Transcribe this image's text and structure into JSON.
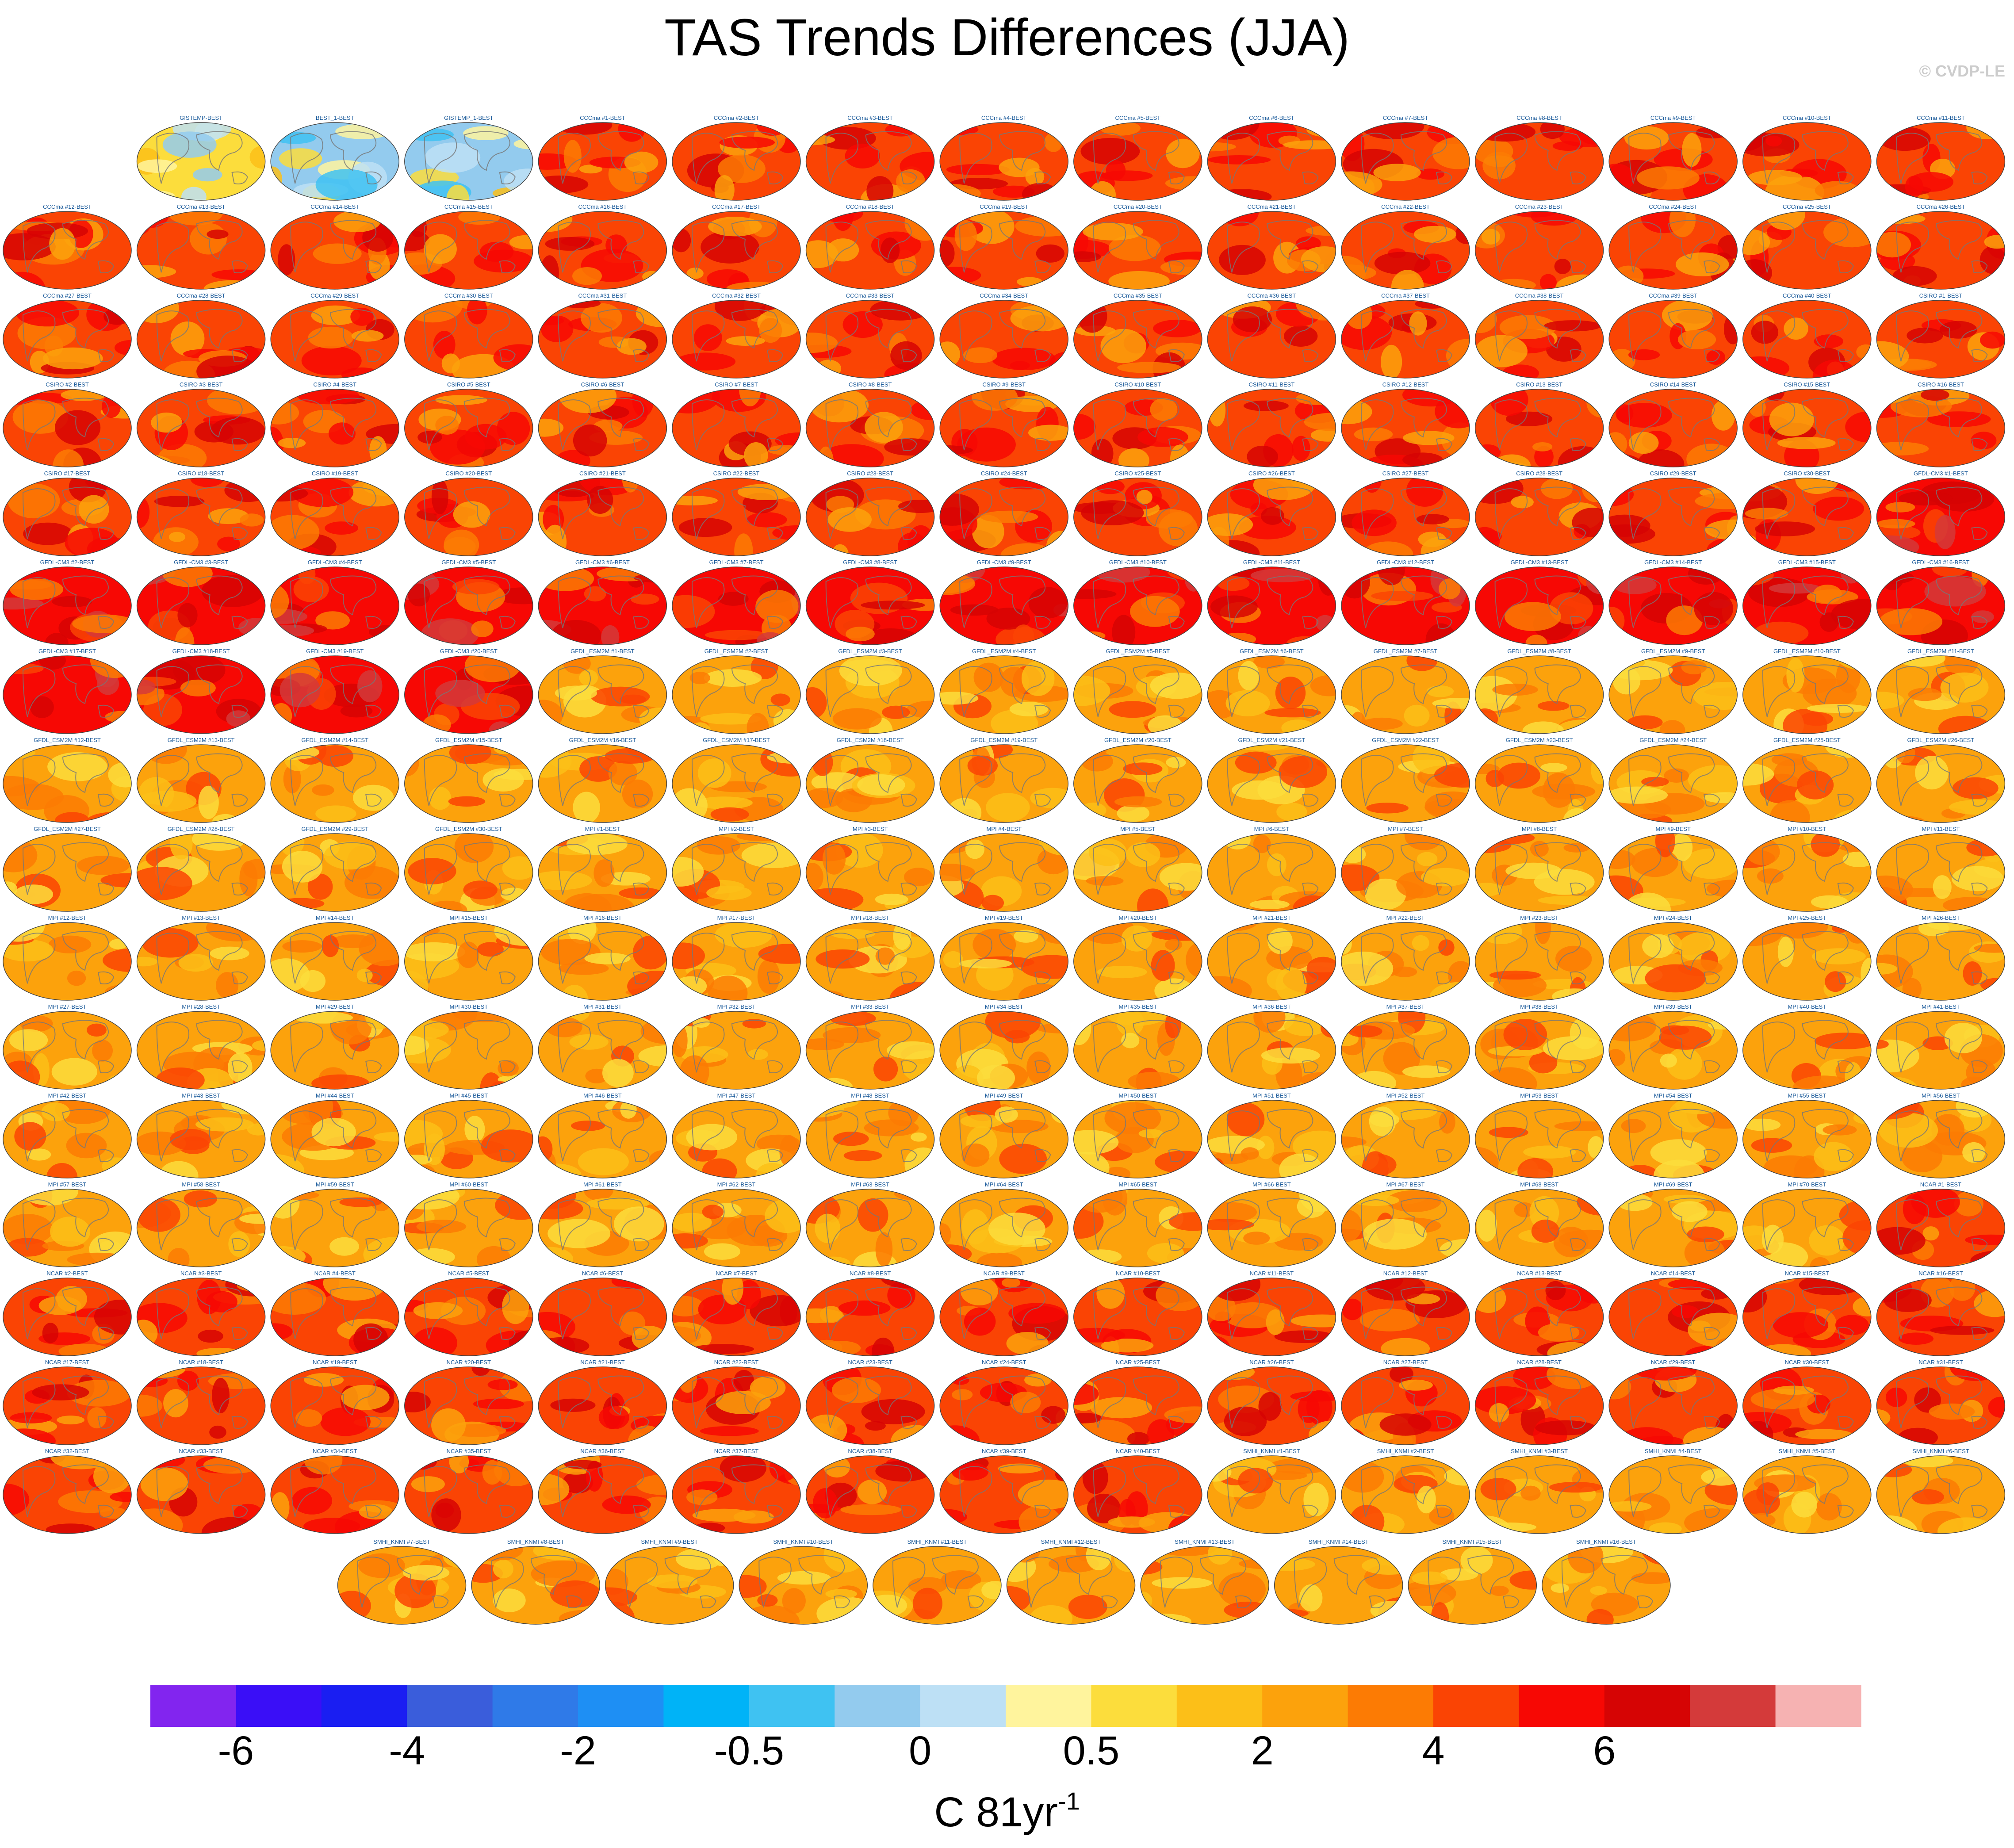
{
  "title": "TAS Trends Differences (JJA)",
  "credit": "© CVDP-LE",
  "panels": [
    {
      "label": "GISTEMP-BEST",
      "scheme": "neutral"
    },
    {
      "label": "BEST_1-BEST",
      "scheme": "neutral-cool"
    },
    {
      "label": "GISTEMP_1-BEST",
      "scheme": "neutral-cool"
    },
    {
      "label": "CCCma #1-BEST",
      "scheme": "warm"
    },
    {
      "label": "CCCma #2-BEST",
      "scheme": "warm"
    },
    {
      "label": "CCCma #3-BEST",
      "scheme": "warm"
    },
    {
      "label": "CCCma #4-BEST",
      "scheme": "warm"
    },
    {
      "label": "CCCma #5-BEST",
      "scheme": "warm"
    },
    {
      "label": "CCCma #6-BEST",
      "scheme": "warm"
    },
    {
      "label": "CCCma #7-BEST",
      "scheme": "warm"
    },
    {
      "label": "CCCma #8-BEST",
      "scheme": "warm"
    },
    {
      "label": "CCCma #9-BEST",
      "scheme": "warm"
    },
    {
      "label": "CCCma #10-BEST",
      "scheme": "warm"
    },
    {
      "label": "CCCma #11-BEST",
      "scheme": "warm"
    },
    {
      "label": "CCCma #12-BEST",
      "scheme": "warm"
    },
    {
      "label": "CCCma #13-BEST",
      "scheme": "warm"
    },
    {
      "label": "CCCma #14-BEST",
      "scheme": "warm"
    },
    {
      "label": "CCCma #15-BEST",
      "scheme": "warm"
    },
    {
      "label": "CCCma #16-BEST",
      "scheme": "warm"
    },
    {
      "label": "CCCma #17-BEST",
      "scheme": "warm"
    },
    {
      "label": "CCCma #18-BEST",
      "scheme": "warm"
    },
    {
      "label": "CCCma #19-BEST",
      "scheme": "warm"
    },
    {
      "label": "CCCma #20-BEST",
      "scheme": "warm"
    },
    {
      "label": "CCCma #21-BEST",
      "scheme": "warm"
    },
    {
      "label": "CCCma #22-BEST",
      "scheme": "warm"
    },
    {
      "label": "CCCma #23-BEST",
      "scheme": "warm"
    },
    {
      "label": "CCCma #24-BEST",
      "scheme": "warm"
    },
    {
      "label": "CCCma #25-BEST",
      "scheme": "warm"
    },
    {
      "label": "CCCma #26-BEST",
      "scheme": "warm"
    },
    {
      "label": "CCCma #27-BEST",
      "scheme": "warm"
    },
    {
      "label": "CCCma #28-BEST",
      "scheme": "warm"
    },
    {
      "label": "CCCma #29-BEST",
      "scheme": "warm"
    },
    {
      "label": "CCCma #30-BEST",
      "scheme": "warm"
    },
    {
      "label": "CCCma #31-BEST",
      "scheme": "warm"
    },
    {
      "label": "CCCma #32-BEST",
      "scheme": "warm"
    },
    {
      "label": "CCCma #33-BEST",
      "scheme": "warm"
    },
    {
      "label": "CCCma #34-BEST",
      "scheme": "warm"
    },
    {
      "label": "CCCma #35-BEST",
      "scheme": "warm"
    },
    {
      "label": "CCCma #36-BEST",
      "scheme": "warm"
    },
    {
      "label": "CCCma #37-BEST",
      "scheme": "warm"
    },
    {
      "label": "CCCma #38-BEST",
      "scheme": "warm"
    },
    {
      "label": "CCCma #39-BEST",
      "scheme": "warm"
    },
    {
      "label": "CCCma #40-BEST",
      "scheme": "warm"
    },
    {
      "label": "CSIRO #1-BEST",
      "scheme": "warm"
    },
    {
      "label": "CSIRO #2-BEST",
      "scheme": "warm"
    },
    {
      "label": "CSIRO #3-BEST",
      "scheme": "warm"
    },
    {
      "label": "CSIRO #4-BEST",
      "scheme": "warm"
    },
    {
      "label": "CSIRO #5-BEST",
      "scheme": "warm"
    },
    {
      "label": "CSIRO #6-BEST",
      "scheme": "warm"
    },
    {
      "label": "CSIRO #7-BEST",
      "scheme": "warm"
    },
    {
      "label": "CSIRO #8-BEST",
      "scheme": "warm"
    },
    {
      "label": "CSIRO #9-BEST",
      "scheme": "warm"
    },
    {
      "label": "CSIRO #10-BEST",
      "scheme": "warm"
    },
    {
      "label": "CSIRO #11-BEST",
      "scheme": "warm"
    },
    {
      "label": "CSIRO #12-BEST",
      "scheme": "warm"
    },
    {
      "label": "CSIRO #13-BEST",
      "scheme": "warm"
    },
    {
      "label": "CSIRO #14-BEST",
      "scheme": "warm"
    },
    {
      "label": "CSIRO #15-BEST",
      "scheme": "warm"
    },
    {
      "label": "CSIRO #16-BEST",
      "scheme": "warm"
    },
    {
      "label": "CSIRO #17-BEST",
      "scheme": "warm"
    },
    {
      "label": "CSIRO #18-BEST",
      "scheme": "warm"
    },
    {
      "label": "CSIRO #19-BEST",
      "scheme": "warm"
    },
    {
      "label": "CSIRO #20-BEST",
      "scheme": "warm"
    },
    {
      "label": "CSIRO #21-BEST",
      "scheme": "warm"
    },
    {
      "label": "CSIRO #22-BEST",
      "scheme": "warm"
    },
    {
      "label": "CSIRO #23-BEST",
      "scheme": "warm"
    },
    {
      "label": "CSIRO #24-BEST",
      "scheme": "warm"
    },
    {
      "label": "CSIRO #25-BEST",
      "scheme": "warm"
    },
    {
      "label": "CSIRO #26-BEST",
      "scheme": "warm"
    },
    {
      "label": "CSIRO #27-BEST",
      "scheme": "warm"
    },
    {
      "label": "CSIRO #28-BEST",
      "scheme": "warm"
    },
    {
      "label": "CSIRO #29-BEST",
      "scheme": "warm"
    },
    {
      "label": "CSIRO #30-BEST",
      "scheme": "warm"
    },
    {
      "label": "GFDL-CM3 #1-BEST",
      "scheme": "hot"
    },
    {
      "label": "GFDL-CM3 #2-BEST",
      "scheme": "hot"
    },
    {
      "label": "GFDL-CM3 #3-BEST",
      "scheme": "hot"
    },
    {
      "label": "GFDL-CM3 #4-BEST",
      "scheme": "hot"
    },
    {
      "label": "GFDL-CM3 #5-BEST",
      "scheme": "hot"
    },
    {
      "label": "GFDL-CM3 #6-BEST",
      "scheme": "hot"
    },
    {
      "label": "GFDL-CM3 #7-BEST",
      "scheme": "hot"
    },
    {
      "label": "GFDL-CM3 #8-BEST",
      "scheme": "hot"
    },
    {
      "label": "GFDL-CM3 #9-BEST",
      "scheme": "hot"
    },
    {
      "label": "GFDL-CM3 #10-BEST",
      "scheme": "hot"
    },
    {
      "label": "GFDL-CM3 #11-BEST",
      "scheme": "hot"
    },
    {
      "label": "GFDL-CM3 #12-BEST",
      "scheme": "hot"
    },
    {
      "label": "GFDL-CM3 #13-BEST",
      "scheme": "hot"
    },
    {
      "label": "GFDL-CM3 #14-BEST",
      "scheme": "hot"
    },
    {
      "label": "GFDL-CM3 #15-BEST",
      "scheme": "hot"
    },
    {
      "label": "GFDL-CM3 #16-BEST",
      "scheme": "hot"
    },
    {
      "label": "GFDL-CM3 #17-BEST",
      "scheme": "hot"
    },
    {
      "label": "GFDL-CM3 #18-BEST",
      "scheme": "hot"
    },
    {
      "label": "GFDL-CM3 #19-BEST",
      "scheme": "hot"
    },
    {
      "label": "GFDL-CM3 #20-BEST",
      "scheme": "hot"
    },
    {
      "label": "GFDL_ESM2M #1-BEST",
      "scheme": "mild"
    },
    {
      "label": "GFDL_ESM2M #2-BEST",
      "scheme": "mild"
    },
    {
      "label": "GFDL_ESM2M #3-BEST",
      "scheme": "mild"
    },
    {
      "label": "GFDL_ESM2M #4-BEST",
      "scheme": "mild"
    },
    {
      "label": "GFDL_ESM2M #5-BEST",
      "scheme": "mild"
    },
    {
      "label": "GFDL_ESM2M #6-BEST",
      "scheme": "mild"
    },
    {
      "label": "GFDL_ESM2M #7-BEST",
      "scheme": "mild"
    },
    {
      "label": "GFDL_ESM2M #8-BEST",
      "scheme": "mild"
    },
    {
      "label": "GFDL_ESM2M #9-BEST",
      "scheme": "mild"
    },
    {
      "label": "GFDL_ESM2M #10-BEST",
      "scheme": "mild"
    },
    {
      "label": "GFDL_ESM2M #11-BEST",
      "scheme": "mild"
    },
    {
      "label": "GFDL_ESM2M #12-BEST",
      "scheme": "mild"
    },
    {
      "label": "GFDL_ESM2M #13-BEST",
      "scheme": "mild"
    },
    {
      "label": "GFDL_ESM2M #14-BEST",
      "scheme": "mild"
    },
    {
      "label": "GFDL_ESM2M #15-BEST",
      "scheme": "mild"
    },
    {
      "label": "GFDL_ESM2M #16-BEST",
      "scheme": "mild"
    },
    {
      "label": "GFDL_ESM2M #17-BEST",
      "scheme": "mild"
    },
    {
      "label": "GFDL_ESM2M #18-BEST",
      "scheme": "mild"
    },
    {
      "label": "GFDL_ESM2M #19-BEST",
      "scheme": "mild"
    },
    {
      "label": "GFDL_ESM2M #20-BEST",
      "scheme": "mild"
    },
    {
      "label": "GFDL_ESM2M #21-BEST",
      "scheme": "mild"
    },
    {
      "label": "GFDL_ESM2M #22-BEST",
      "scheme": "mild"
    },
    {
      "label": "GFDL_ESM2M #23-BEST",
      "scheme": "mild"
    },
    {
      "label": "GFDL_ESM2M #24-BEST",
      "scheme": "mild"
    },
    {
      "label": "GFDL_ESM2M #25-BEST",
      "scheme": "mild"
    },
    {
      "label": "GFDL_ESM2M #26-BEST",
      "scheme": "mild"
    },
    {
      "label": "GFDL_ESM2M #27-BEST",
      "scheme": "mild"
    },
    {
      "label": "GFDL_ESM2M #28-BEST",
      "scheme": "mild"
    },
    {
      "label": "GFDL_ESM2M #29-BEST",
      "scheme": "mild"
    },
    {
      "label": "GFDL_ESM2M #30-BEST",
      "scheme": "mild"
    },
    {
      "label": "MPI #1-BEST",
      "scheme": "mild"
    },
    {
      "label": "MPI #2-BEST",
      "scheme": "mild"
    },
    {
      "label": "MPI #3-BEST",
      "scheme": "mild"
    },
    {
      "label": "MPI #4-BEST",
      "scheme": "mild"
    },
    {
      "label": "MPI #5-BEST",
      "scheme": "mild"
    },
    {
      "label": "MPI #6-BEST",
      "scheme": "mild"
    },
    {
      "label": "MPI #7-BEST",
      "scheme": "mild"
    },
    {
      "label": "MPI #8-BEST",
      "scheme": "mild"
    },
    {
      "label": "MPI #9-BEST",
      "scheme": "mild"
    },
    {
      "label": "MPI #10-BEST",
      "scheme": "mild"
    },
    {
      "label": "MPI #11-BEST",
      "scheme": "mild"
    },
    {
      "label": "MPI #12-BEST",
      "scheme": "mild"
    },
    {
      "label": "MPI #13-BEST",
      "scheme": "mild"
    },
    {
      "label": "MPI #14-BEST",
      "scheme": "mild"
    },
    {
      "label": "MPI #15-BEST",
      "scheme": "mild"
    },
    {
      "label": "MPI #16-BEST",
      "scheme": "mild"
    },
    {
      "label": "MPI #17-BEST",
      "scheme": "mild"
    },
    {
      "label": "MPI #18-BEST",
      "scheme": "mild"
    },
    {
      "label": "MPI #19-BEST",
      "scheme": "mild"
    },
    {
      "label": "MPI #20-BEST",
      "scheme": "mild"
    },
    {
      "label": "MPI #21-BEST",
      "scheme": "mild"
    },
    {
      "label": "MPI #22-BEST",
      "scheme": "mild"
    },
    {
      "label": "MPI #23-BEST",
      "scheme": "mild"
    },
    {
      "label": "MPI #24-BEST",
      "scheme": "mild"
    },
    {
      "label": "MPI #25-BEST",
      "scheme": "mild"
    },
    {
      "label": "MPI #26-BEST",
      "scheme": "mild"
    },
    {
      "label": "MPI #27-BEST",
      "scheme": "mild"
    },
    {
      "label": "MPI #28-BEST",
      "scheme": "mild"
    },
    {
      "label": "MPI #29-BEST",
      "scheme": "mild"
    },
    {
      "label": "MPI #30-BEST",
      "scheme": "mild"
    },
    {
      "label": "MPI #31-BEST",
      "scheme": "mild"
    },
    {
      "label": "MPI #32-BEST",
      "scheme": "mild"
    },
    {
      "label": "MPI #33-BEST",
      "scheme": "mild"
    },
    {
      "label": "MPI #34-BEST",
      "scheme": "mild"
    },
    {
      "label": "MPI #35-BEST",
      "scheme": "mild"
    },
    {
      "label": "MPI #36-BEST",
      "scheme": "mild"
    },
    {
      "label": "MPI #37-BEST",
      "scheme": "mild"
    },
    {
      "label": "MPI #38-BEST",
      "scheme": "mild"
    },
    {
      "label": "MPI #39-BEST",
      "scheme": "mild"
    },
    {
      "label": "MPI #40-BEST",
      "scheme": "mild"
    },
    {
      "label": "MPI #41-BEST",
      "scheme": "mild"
    },
    {
      "label": "MPI #42-BEST",
      "scheme": "mild"
    },
    {
      "label": "MPI #43-BEST",
      "scheme": "mild"
    },
    {
      "label": "MPI #44-BEST",
      "scheme": "mild"
    },
    {
      "label": "MPI #45-BEST",
      "scheme": "mild"
    },
    {
      "label": "MPI #46-BEST",
      "scheme": "mild"
    },
    {
      "label": "MPI #47-BEST",
      "scheme": "mild"
    },
    {
      "label": "MPI #48-BEST",
      "scheme": "mild"
    },
    {
      "label": "MPI #49-BEST",
      "scheme": "mild"
    },
    {
      "label": "MPI #50-BEST",
      "scheme": "mild"
    },
    {
      "label": "MPI #51-BEST",
      "scheme": "mild"
    },
    {
      "label": "MPI #52-BEST",
      "scheme": "mild"
    },
    {
      "label": "MPI #53-BEST",
      "scheme": "mild"
    },
    {
      "label": "MPI #54-BEST",
      "scheme": "mild"
    },
    {
      "label": "MPI #55-BEST",
      "scheme": "mild"
    },
    {
      "label": "MPI #56-BEST",
      "scheme": "mild"
    },
    {
      "label": "MPI #57-BEST",
      "scheme": "mild"
    },
    {
      "label": "MPI #58-BEST",
      "scheme": "mild"
    },
    {
      "label": "MPI #59-BEST",
      "scheme": "mild"
    },
    {
      "label": "MPI #60-BEST",
      "scheme": "mild"
    },
    {
      "label": "MPI #61-BEST",
      "scheme": "mild"
    },
    {
      "label": "MPI #62-BEST",
      "scheme": "mild"
    },
    {
      "label": "MPI #63-BEST",
      "scheme": "mild"
    },
    {
      "label": "MPI #64-BEST",
      "scheme": "mild"
    },
    {
      "label": "MPI #65-BEST",
      "scheme": "mild"
    },
    {
      "label": "MPI #66-BEST",
      "scheme": "mild"
    },
    {
      "label": "MPI #67-BEST",
      "scheme": "mild"
    },
    {
      "label": "MPI #68-BEST",
      "scheme": "mild"
    },
    {
      "label": "MPI #69-BEST",
      "scheme": "mild"
    },
    {
      "label": "MPI #70-BEST",
      "scheme": "mild"
    },
    {
      "label": "NCAR #1-BEST",
      "scheme": "warm"
    },
    {
      "label": "NCAR #2-BEST",
      "scheme": "warm"
    },
    {
      "label": "NCAR #3-BEST",
      "scheme": "warm"
    },
    {
      "label": "NCAR #4-BEST",
      "scheme": "warm"
    },
    {
      "label": "NCAR #5-BEST",
      "scheme": "warm"
    },
    {
      "label": "NCAR #6-BEST",
      "scheme": "warm"
    },
    {
      "label": "NCAR #7-BEST",
      "scheme": "warm"
    },
    {
      "label": "NCAR #8-BEST",
      "scheme": "warm"
    },
    {
      "label": "NCAR #9-BEST",
      "scheme": "warm"
    },
    {
      "label": "NCAR #10-BEST",
      "scheme": "warm"
    },
    {
      "label": "NCAR #11-BEST",
      "scheme": "warm"
    },
    {
      "label": "NCAR #12-BEST",
      "scheme": "warm"
    },
    {
      "label": "NCAR #13-BEST",
      "scheme": "warm"
    },
    {
      "label": "NCAR #14-BEST",
      "scheme": "warm"
    },
    {
      "label": "NCAR #15-BEST",
      "scheme": "warm"
    },
    {
      "label": "NCAR #16-BEST",
      "scheme": "warm"
    },
    {
      "label": "NCAR #17-BEST",
      "scheme": "warm"
    },
    {
      "label": "NCAR #18-BEST",
      "scheme": "warm"
    },
    {
      "label": "NCAR #19-BEST",
      "scheme": "warm"
    },
    {
      "label": "NCAR #20-BEST",
      "scheme": "warm"
    },
    {
      "label": "NCAR #21-BEST",
      "scheme": "warm"
    },
    {
      "label": "NCAR #22-BEST",
      "scheme": "warm"
    },
    {
      "label": "NCAR #23-BEST",
      "scheme": "warm"
    },
    {
      "label": "NCAR #24-BEST",
      "scheme": "warm"
    },
    {
      "label": "NCAR #25-BEST",
      "scheme": "warm"
    },
    {
      "label": "NCAR #26-BEST",
      "scheme": "warm"
    },
    {
      "label": "NCAR #27-BEST",
      "scheme": "warm"
    },
    {
      "label": "NCAR #28-BEST",
      "scheme": "warm"
    },
    {
      "label": "NCAR #29-BEST",
      "scheme": "warm"
    },
    {
      "label": "NCAR #30-BEST",
      "scheme": "warm"
    },
    {
      "label": "NCAR #31-BEST",
      "scheme": "warm"
    },
    {
      "label": "NCAR #32-BEST",
      "scheme": "warm"
    },
    {
      "label": "NCAR #33-BEST",
      "scheme": "warm"
    },
    {
      "label": "NCAR #34-BEST",
      "scheme": "warm"
    },
    {
      "label": "NCAR #35-BEST",
      "scheme": "warm"
    },
    {
      "label": "NCAR #36-BEST",
      "scheme": "warm"
    },
    {
      "label": "NCAR #37-BEST",
      "scheme": "warm"
    },
    {
      "label": "NCAR #38-BEST",
      "scheme": "warm"
    },
    {
      "label": "NCAR #39-BEST",
      "scheme": "warm"
    },
    {
      "label": "NCAR #40-BEST",
      "scheme": "warm"
    },
    {
      "label": "SMHI_KNMI #1-BEST",
      "scheme": "mild"
    },
    {
      "label": "SMHI_KNMI #2-BEST",
      "scheme": "mild"
    },
    {
      "label": "SMHI_KNMI #3-BEST",
      "scheme": "mild"
    },
    {
      "label": "SMHI_KNMI #4-BEST",
      "scheme": "mild"
    },
    {
      "label": "SMHI_KNMI #5-BEST",
      "scheme": "mild"
    },
    {
      "label": "SMHI_KNMI #6-BEST",
      "scheme": "mild"
    },
    {
      "label": "SMHI_KNMI #7-BEST",
      "scheme": "mild"
    },
    {
      "label": "SMHI_KNMI #8-BEST",
      "scheme": "mild"
    },
    {
      "label": "SMHI_KNMI #9-BEST",
      "scheme": "mild"
    },
    {
      "label": "SMHI_KNMI #10-BEST",
      "scheme": "mild"
    },
    {
      "label": "SMHI_KNMI #11-BEST",
      "scheme": "mild"
    },
    {
      "label": "SMHI_KNMI #12-BEST",
      "scheme": "mild"
    },
    {
      "label": "SMHI_KNMI #13-BEST",
      "scheme": "mild"
    },
    {
      "label": "SMHI_KNMI #14-BEST",
      "scheme": "mild"
    },
    {
      "label": "SMHI_KNMI #15-BEST",
      "scheme": "mild"
    },
    {
      "label": "SMHI_KNMI #16-BEST",
      "scheme": "mild"
    }
  ],
  "chart_data": {
    "type": "heatmap",
    "title": "TAS Trends Differences (JJA)",
    "colorbar": {
      "colors": [
        "#8225ef",
        "#3a0ef7",
        "#1a1ef2",
        "#3a5ddb",
        "#2f7ae8",
        "#1e8ff4",
        "#00b3f7",
        "#3fc2f2",
        "#93cbee",
        "#bde0f5",
        "#fff49d",
        "#fcdd3c",
        "#fcbf18",
        "#fca20c",
        "#fc7b04",
        "#fa4404",
        "#f70804",
        "#d60404",
        "#d43a3a",
        "#f6b2b2"
      ],
      "ticks": [
        "-6",
        "-4",
        "-2",
        "-0.5",
        "0",
        "0.5",
        "2",
        "4",
        "6"
      ],
      "tick_boundaries": [
        1,
        3,
        5,
        7,
        9,
        11,
        13,
        15,
        17
      ],
      "label": "C 81yr",
      "label_superscript": "-1"
    }
  }
}
